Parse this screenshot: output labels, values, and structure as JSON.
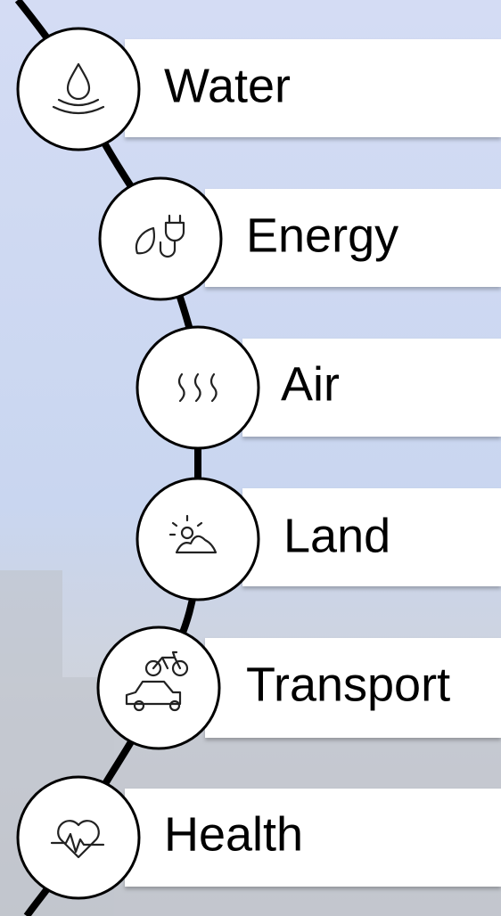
{
  "items": [
    {
      "label": "Water"
    },
    {
      "label": "Energy"
    },
    {
      "label": "Air"
    },
    {
      "label": "Land"
    },
    {
      "label": "Transport"
    },
    {
      "label": "Health"
    }
  ]
}
